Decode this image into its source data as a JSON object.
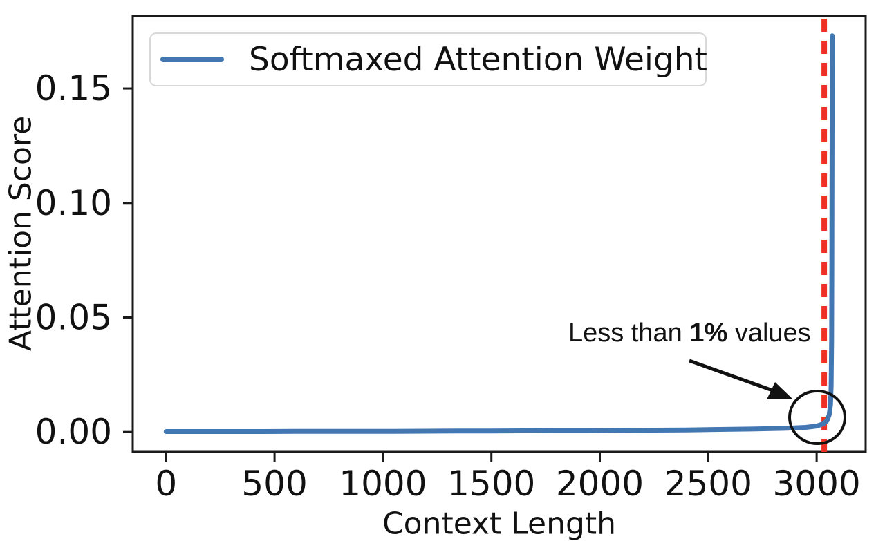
{
  "figure": {
    "xlabel": "Context Length",
    "ylabel": "Attention Score",
    "legend": {
      "entries": [
        {
          "label": "Softmaxed Attention Weight",
          "color": "#4277b2"
        }
      ],
      "position": "upper left"
    },
    "annotation": {
      "prefix": "Less than ",
      "bold_text": "1%",
      "suffix": " values"
    }
  },
  "chart_data": {
    "type": "line",
    "title": "",
    "xlabel": "Context Length",
    "ylabel": "Attention Score",
    "xlim": [
      -154,
      3226
    ],
    "ylim": [
      -0.0087,
      0.1817
    ],
    "grid": false,
    "legend_position": "upper left",
    "x_ticks": [
      0,
      500,
      1000,
      1500,
      2000,
      2500,
      3000
    ],
    "y_ticks": [
      0,
      0.05,
      0.1,
      0.15
    ],
    "y_tick_labels": [
      "0.00",
      "0.05",
      "0.10",
      "0.15"
    ],
    "series": [
      {
        "name": "Softmaxed Attention Weight",
        "color": "#4277b2",
        "points": [
          [
            0,
            0.0002
          ],
          [
            150,
            0.0002
          ],
          [
            300,
            0.0002
          ],
          [
            450,
            0.0002
          ],
          [
            600,
            0.00025
          ],
          [
            750,
            0.00025
          ],
          [
            900,
            0.0003
          ],
          [
            1050,
            0.0003
          ],
          [
            1200,
            0.00035
          ],
          [
            1350,
            0.0004
          ],
          [
            1500,
            0.00045
          ],
          [
            1650,
            0.0005
          ],
          [
            1800,
            0.00055
          ],
          [
            1950,
            0.0006
          ],
          [
            2100,
            0.0007
          ],
          [
            2250,
            0.0008
          ],
          [
            2400,
            0.0009
          ],
          [
            2550,
            0.0011
          ],
          [
            2700,
            0.0013
          ],
          [
            2850,
            0.0016
          ],
          [
            2950,
            0.002
          ],
          [
            3000,
            0.0026
          ],
          [
            3030,
            0.0035
          ],
          [
            3048,
            0.005
          ],
          [
            3058,
            0.0075
          ],
          [
            3064,
            0.012
          ],
          [
            3067,
            0.02
          ],
          [
            3069,
            0.04
          ],
          [
            3070,
            0.07
          ],
          [
            3071,
            0.12
          ],
          [
            3072,
            0.173
          ]
        ]
      }
    ],
    "vline": {
      "x": 3035,
      "color": "#ee3124",
      "style": "dashed"
    },
    "annotations": [
      {
        "text": "Less than 1% values",
        "bold_part": "1%",
        "arrow_points_to": {
          "x": 3000,
          "y": 0.006
        },
        "circle_center": {
          "x": 3035,
          "y": 0.005
        }
      }
    ]
  },
  "colors": {
    "line_blue": "#4277b2",
    "dashed_red": "#ee3124",
    "frame": "#1a1a1a",
    "legend_border": "#d8d8d8",
    "text": "#111111",
    "background": "#ffffff"
  }
}
